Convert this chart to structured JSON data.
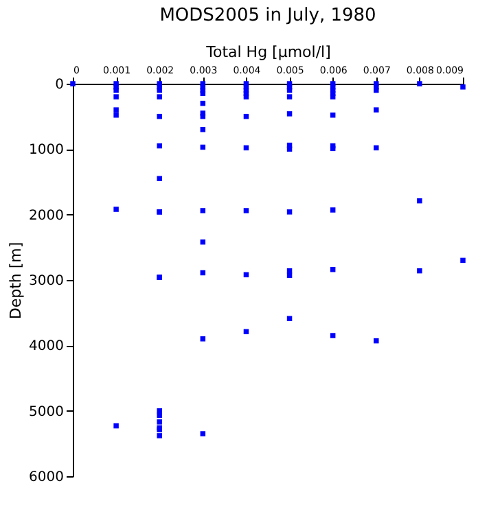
{
  "chart_data": {
    "type": "scatter",
    "title": "MODS2005 in July, 1980",
    "xlabel": "Total Hg [µmol/l]",
    "ylabel": "Depth [m]",
    "x": [
      0,
      0.001,
      0.001,
      0.001,
      0.001,
      0.001,
      0.001,
      0.001,
      0.001,
      0.002,
      0.002,
      0.002,
      0.002,
      0.002,
      0.002,
      0.002,
      0.002,
      0.002,
      0.002,
      0.002,
      0.002,
      0.002,
      0.002,
      0.002,
      0.002,
      0.002,
      0.003,
      0.003,
      0.003,
      0.003,
      0.003,
      0.003,
      0.003,
      0.003,
      0.003,
      0.003,
      0.003,
      0.003,
      0.003,
      0.003,
      0.004,
      0.004,
      0.004,
      0.004,
      0.004,
      0.004,
      0.004,
      0.004,
      0.004,
      0.004,
      0.005,
      0.005,
      0.005,
      0.005,
      0.005,
      0.005,
      0.005,
      0.005,
      0.005,
      0.005,
      0.005,
      0.006,
      0.006,
      0.006,
      0.006,
      0.006,
      0.006,
      0.006,
      0.006,
      0.006,
      0.006,
      0.006,
      0.007,
      0.007,
      0.007,
      0.007,
      0.007,
      0.007,
      0.008,
      0.008,
      0.008,
      0.009,
      0.009
    ],
    "values": [
      0,
      0,
      50,
      100,
      200,
      400,
      480,
      1920,
      5230,
      0,
      50,
      100,
      200,
      500,
      950,
      1450,
      1960,
      2960,
      5000,
      5070,
      5170,
      5260,
      5290,
      5380,
      1960,
      2960,
      0,
      50,
      100,
      150,
      300,
      450,
      500,
      700,
      970,
      1940,
      2420,
      2890,
      3900,
      5350,
      0,
      50,
      100,
      150,
      200,
      500,
      980,
      1940,
      2920,
      3790,
      0,
      50,
      100,
      200,
      460,
      940,
      1000,
      1960,
      2860,
      2930,
      3590,
      0,
      50,
      100,
      150,
      200,
      480,
      950,
      990,
      1930,
      2840,
      3850,
      0,
      50,
      100,
      400,
      980,
      3930,
      0,
      1790,
      2860,
      50,
      2700
    ],
    "color": "#0000ff",
    "marker": "square",
    "xlim": [
      0,
      0.009
    ],
    "xticks": [
      0,
      0.001,
      0.002,
      0.003,
      0.004,
      0.005,
      0.006,
      0.007,
      0.008,
      0.009
    ],
    "ylim": [
      6000,
      0
    ],
    "yticks": [
      0,
      1000,
      2000,
      3000,
      4000,
      5000,
      6000
    ],
    "grid": false
  }
}
